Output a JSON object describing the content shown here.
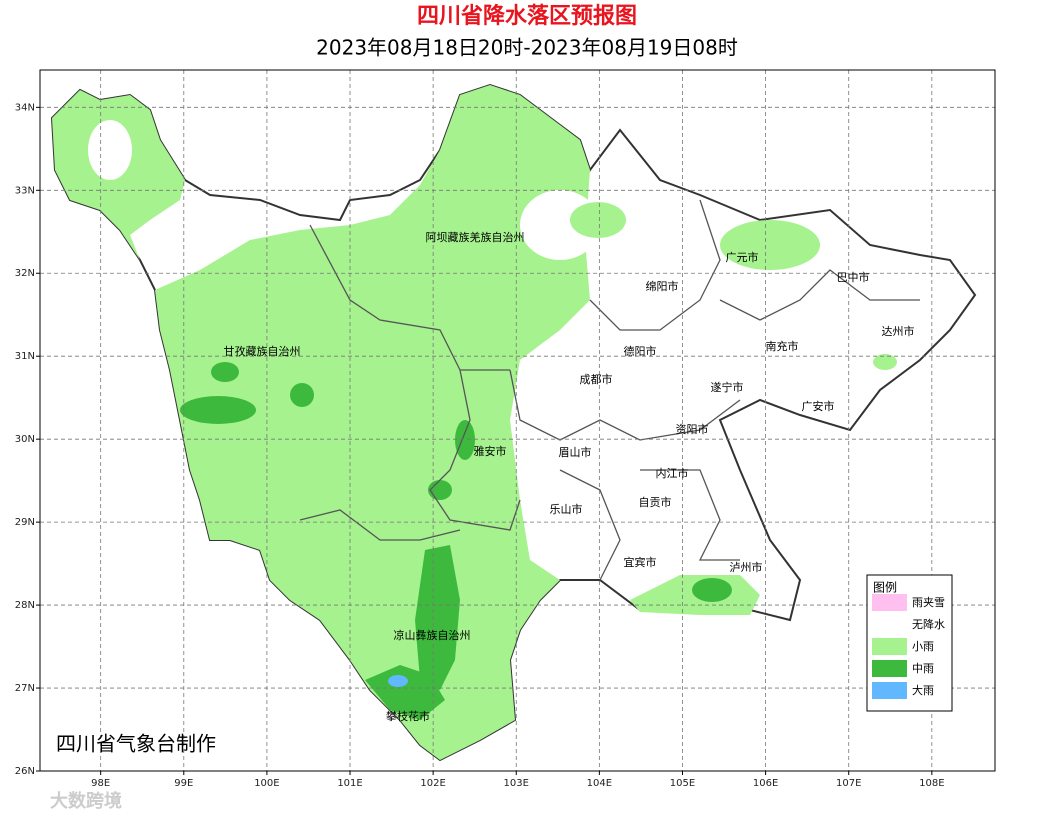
{
  "header": {
    "title": "四川省降水落区预报图",
    "subtitle": "2023年08月18日20时-2023年08月19日08时"
  },
  "map": {
    "xlim": [
      97.27,
      108.76
    ],
    "ylim": [
      26,
      34.45
    ],
    "grid": true,
    "xticks": [
      {
        "value": 98,
        "label": "98E"
      },
      {
        "value": 99,
        "label": "99E"
      },
      {
        "value": 100,
        "label": "100E"
      },
      {
        "value": 101,
        "label": "101E"
      },
      {
        "value": 102,
        "label": "102E"
      },
      {
        "value": 103,
        "label": "103E"
      },
      {
        "value": 104,
        "label": "104E"
      },
      {
        "value": 105,
        "label": "105E"
      },
      {
        "value": 106,
        "label": "106E"
      },
      {
        "value": 107,
        "label": "107E"
      },
      {
        "value": 108,
        "label": "108E"
      }
    ],
    "yticks": [
      {
        "value": 26,
        "label": "26N"
      },
      {
        "value": 27,
        "label": "27N"
      },
      {
        "value": 28,
        "label": "28N"
      },
      {
        "value": 29,
        "label": "29N"
      },
      {
        "value": 30,
        "label": "30N"
      },
      {
        "value": 31,
        "label": "31N"
      },
      {
        "value": 32,
        "label": "32N"
      },
      {
        "value": 33,
        "label": "33N"
      },
      {
        "value": 34,
        "label": "34N"
      }
    ],
    "cities": [
      "阿坝藏族羌族自治州",
      "广元市",
      "巴中市",
      "绵阳市",
      "达州市",
      "甘孜藏族自治州",
      "德阳市",
      "南充市",
      "成都市",
      "遂宁市",
      "广安市",
      "资阳市",
      "雅安市",
      "眉山市",
      "内江市",
      "自贡市",
      "乐山市",
      "宜宾市",
      "泸州市",
      "凉山彝族自治州",
      "攀枝花市"
    ]
  },
  "legend": {
    "title": "图例",
    "items": [
      {
        "label": "雨夹雪",
        "color": "#ffc0f0"
      },
      {
        "label": "无降水",
        "color": "#ffffff"
      },
      {
        "label": "小雨",
        "color": "#a6f28f"
      },
      {
        "label": "中雨",
        "color": "#3dba3d"
      },
      {
        "label": "大雨",
        "color": "#61b8ff"
      }
    ]
  },
  "credit": "四川省气象台制作",
  "watermark": "大数跨境"
}
